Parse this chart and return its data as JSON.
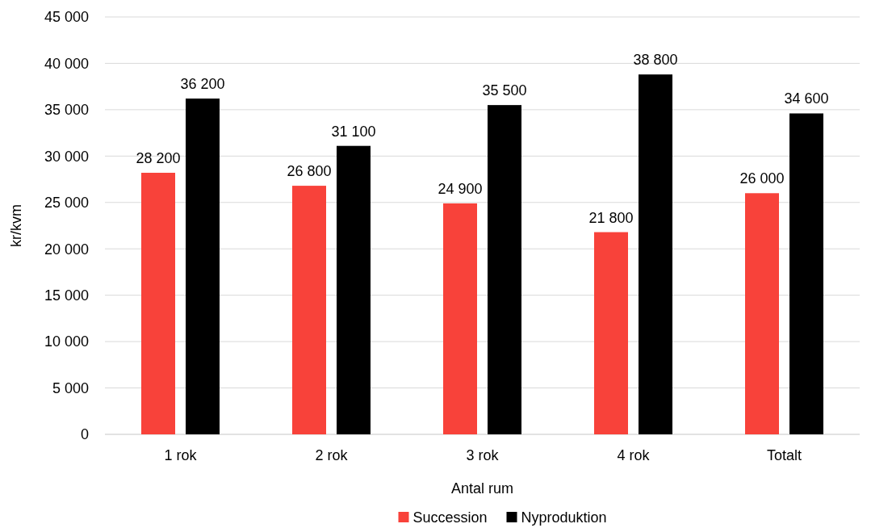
{
  "chart_data": {
    "type": "bar",
    "xlabel": "Antal rum",
    "ylabel": "kr/kvm",
    "categories": [
      "1 rok",
      "2 rok",
      "3 rok",
      "4 rok",
      "Totalt"
    ],
    "series": [
      {
        "name": "Succession",
        "color": "#f8423a",
        "values": [
          28200,
          26800,
          24900,
          21800,
          26000
        ],
        "value_labels": [
          "28 200",
          "26 800",
          "24 900",
          "21 800",
          "26 000"
        ]
      },
      {
        "name": "Nyproduktion",
        "color": "#000000",
        "values": [
          36200,
          31100,
          35500,
          38800,
          34600
        ],
        "value_labels": [
          "36 200",
          "31 100",
          "35 500",
          "38 800",
          "34 600"
        ]
      }
    ],
    "ylim": [
      0,
      45000
    ],
    "yticks": [
      {
        "value": 0,
        "label": "0"
      },
      {
        "value": 5000,
        "label": "5 000"
      },
      {
        "value": 10000,
        "label": "10 000"
      },
      {
        "value": 15000,
        "label": "15 000"
      },
      {
        "value": 20000,
        "label": "20 000"
      },
      {
        "value": 25000,
        "label": "25 000"
      },
      {
        "value": 30000,
        "label": "30 000"
      },
      {
        "value": 35000,
        "label": "35 000"
      },
      {
        "value": 40000,
        "label": "40 000"
      },
      {
        "value": 45000,
        "label": "45 000"
      }
    ],
    "grid": "y",
    "legend": "bottom"
  }
}
